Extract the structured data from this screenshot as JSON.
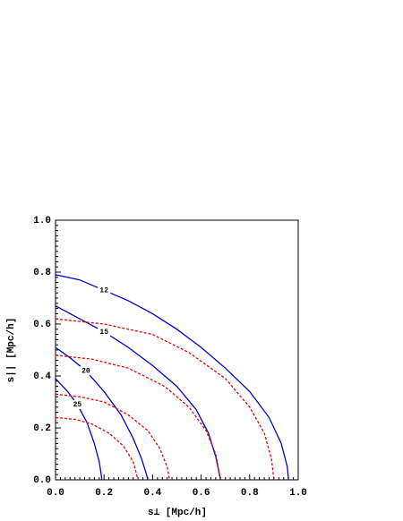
{
  "chart_data": {
    "type": "contour",
    "xlabel": "s⊥ [Mpc/h]",
    "ylabel": "s|| [Mpc/h]",
    "xlim": [
      0,
      1
    ],
    "ylim": [
      0,
      1
    ],
    "xticks": [
      {
        "value": 0,
        "label": "0.0"
      },
      {
        "value": 0.2,
        "label": "0.2"
      },
      {
        "value": 0.4,
        "label": "0.4"
      },
      {
        "value": 0.6,
        "label": "0.6"
      },
      {
        "value": 0.8,
        "label": "0.8"
      },
      {
        "value": 1,
        "label": "1.0"
      }
    ],
    "yticks": [
      {
        "value": 0,
        "label": "0.0"
      },
      {
        "value": 0.2,
        "label": "0.2"
      },
      {
        "value": 0.4,
        "label": "0.4"
      },
      {
        "value": 0.6,
        "label": "0.6"
      },
      {
        "value": 0.8,
        "label": "0.8"
      },
      {
        "value": 1,
        "label": "1.0"
      }
    ],
    "series": [
      {
        "level": 12,
        "color": "#0000cc",
        "dashed": false,
        "x": [
          0,
          0.1,
          0.2,
          0.3,
          0.4,
          0.5,
          0.6,
          0.7,
          0.8,
          0.88,
          0.93,
          0.955,
          0.96
        ],
        "y": [
          0.79,
          0.77,
          0.73,
          0.69,
          0.64,
          0.58,
          0.51,
          0.43,
          0.34,
          0.24,
          0.14,
          0.05,
          0
        ]
      },
      {
        "level": 15,
        "color": "#0000cc",
        "dashed": false,
        "x": [
          0,
          0.1,
          0.2,
          0.3,
          0.4,
          0.5,
          0.58,
          0.63,
          0.66,
          0.68
        ],
        "y": [
          0.67,
          0.62,
          0.57,
          0.51,
          0.44,
          0.36,
          0.27,
          0.18,
          0.09,
          0
        ]
      },
      {
        "level": 20,
        "color": "#0000cc",
        "dashed": false,
        "x": [
          0,
          0.06,
          0.125,
          0.2,
          0.27,
          0.32,
          0.355,
          0.375,
          0.38
        ],
        "y": [
          0.51,
          0.47,
          0.42,
          0.34,
          0.25,
          0.16,
          0.08,
          0.02,
          0
        ]
      },
      {
        "level": 25,
        "color": "#0000cc",
        "dashed": false,
        "x": [
          0,
          0.05,
          0.09,
          0.13,
          0.16,
          0.18,
          0.19,
          0.19
        ],
        "y": [
          0.39,
          0.34,
          0.29,
          0.22,
          0.14,
          0.07,
          0.01,
          0
        ]
      },
      {
        "color": "#ee0000",
        "dashed": true,
        "x": [
          0,
          0.2,
          0.4,
          0.55,
          0.7,
          0.8,
          0.86,
          0.89,
          0.9
        ],
        "y": [
          0.62,
          0.6,
          0.56,
          0.49,
          0.39,
          0.28,
          0.18,
          0.08,
          0
        ]
      },
      {
        "color": "#ee0000",
        "dashed": true,
        "x": [
          0,
          0.15,
          0.3,
          0.45,
          0.55,
          0.62,
          0.66,
          0.68
        ],
        "y": [
          0.48,
          0.465,
          0.43,
          0.36,
          0.28,
          0.19,
          0.1,
          0
        ]
      },
      {
        "color": "#ee0000",
        "dashed": true,
        "x": [
          0,
          0.1,
          0.2,
          0.3,
          0.38,
          0.43,
          0.46,
          0.47
        ],
        "y": [
          0.33,
          0.32,
          0.3,
          0.25,
          0.19,
          0.12,
          0.05,
          0
        ]
      },
      {
        "color": "#ee0000",
        "dashed": true,
        "x": [
          0,
          0.08,
          0.15,
          0.22,
          0.28,
          0.32,
          0.34
        ],
        "y": [
          0.24,
          0.233,
          0.215,
          0.18,
          0.13,
          0.07,
          0
        ]
      }
    ]
  }
}
